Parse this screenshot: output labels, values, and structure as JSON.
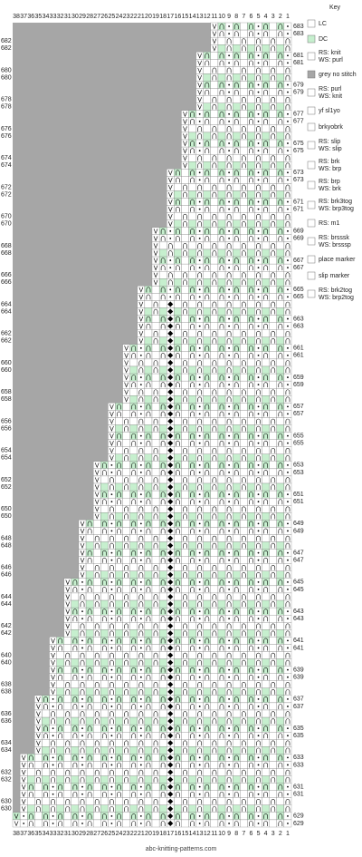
{
  "key_title": "Key",
  "columns": [
    38,
    37,
    36,
    35,
    34,
    33,
    32,
    31,
    30,
    29,
    28,
    27,
    26,
    25,
    24,
    23,
    22,
    21,
    20,
    19,
    18,
    17,
    16,
    15,
    14,
    13,
    12,
    11,
    10,
    9,
    8,
    7,
    6,
    5,
    4,
    3,
    2,
    1
  ],
  "rows": [
    683,
    682,
    681,
    680,
    679,
    678,
    677,
    676,
    675,
    674,
    673,
    672,
    671,
    670,
    669,
    668,
    667,
    666,
    665,
    664,
    663,
    662,
    661,
    660,
    659,
    658,
    657,
    656,
    655,
    654,
    653,
    652,
    651,
    650,
    649,
    648,
    647,
    646,
    645,
    644,
    643,
    642,
    641,
    640,
    639,
    638,
    637,
    636,
    635,
    634,
    633,
    632,
    631,
    630,
    629
  ],
  "key": [
    [
      "LC"
    ],
    [
      "DC"
    ],
    [
      "RS: knit",
      "WS: purl"
    ],
    [
      "grey no stitch"
    ],
    [
      "RS: purl",
      "WS: knit"
    ],
    [
      "yf sl1yo"
    ],
    [
      "brkyobrk"
    ],
    [
      "RS: slip",
      "WS: slip"
    ],
    [
      "RS: brk",
      "WS: brp"
    ],
    [
      "RS: brp",
      "WS: brk"
    ],
    [
      "RS: brk3tog",
      "WS: brp3tog"
    ],
    [
      "RS: m1"
    ],
    [
      "RS: brsssk",
      "WS: brsssp"
    ],
    [
      "place marker"
    ],
    [
      "slip marker"
    ],
    [
      "RS: brk2tog",
      "WS: brp2tog"
    ]
  ],
  "watermark": "abc-knitting-patterns.com"
}
